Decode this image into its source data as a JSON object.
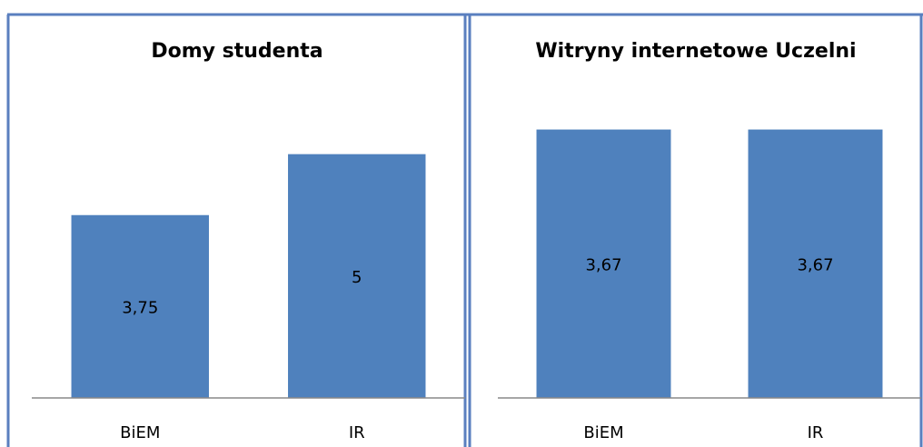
{
  "chart_data": [
    {
      "type": "bar",
      "title": "Domy studenta",
      "categories": [
        "BiEM",
        "IR"
      ],
      "values": [
        3.75,
        5
      ],
      "value_labels": [
        "3,75",
        "5"
      ],
      "color": "#4f81bd"
    },
    {
      "type": "bar",
      "title": "Witryny internetowe Uczelni",
      "categories": [
        "BiEM",
        "IR"
      ],
      "values": [
        3.67,
        3.67
      ],
      "value_labels": [
        "3,67",
        "3,67"
      ],
      "color": "#4f81bd"
    }
  ]
}
